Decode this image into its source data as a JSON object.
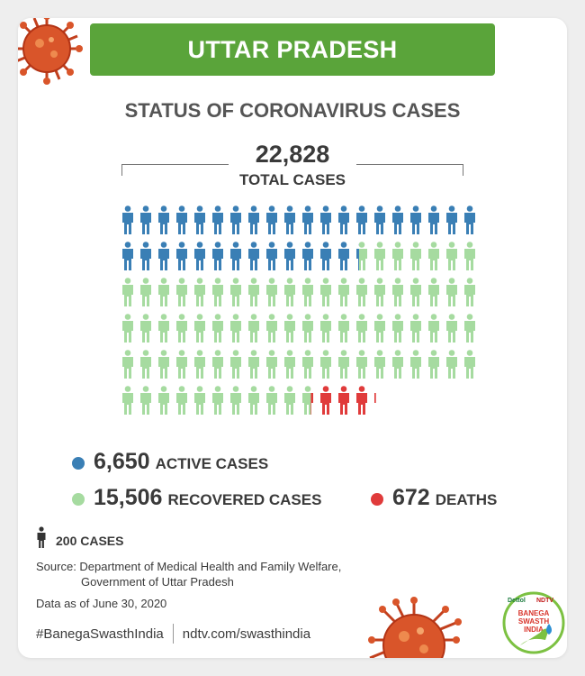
{
  "header": {
    "state": "UTTAR PRADESH",
    "title": "STATUS OF CORONAVIRUS CASES"
  },
  "total": {
    "value": "22,828",
    "label": "TOTAL CASES"
  },
  "legend": {
    "active": {
      "value": "6,650",
      "label": "ACTIVE CASES"
    },
    "recovered": {
      "value": "15,506",
      "label": "RECOVERED CASES"
    },
    "deaths": {
      "value": "672",
      "label": "DEATHS"
    }
  },
  "unit": {
    "label": "200 CASES"
  },
  "source": {
    "line1": "Source: Department of Medical Health and Family Welfare,",
    "line2": "Government of Uttar Pradesh"
  },
  "as_of": "Data as of June 30, 2020",
  "footer": {
    "hashtag": "#BanegaSwasthIndia",
    "url": "ndtv.com/swasthindia"
  },
  "logo": {
    "brand1": "Dettol",
    "brand2": "NDTV",
    "line1": "BANEGA",
    "line2": "SWASTH",
    "line3": "INDIA"
  },
  "colors": {
    "banner": "#5aa43a",
    "active": "#3a7fb5",
    "recovered": "#a6dba0",
    "deaths": "#e03b3b",
    "unit_icon": "#333333"
  },
  "chart_data": {
    "type": "waffle",
    "unit_cases": 200,
    "icons_per_row": 20,
    "categories": [
      "ACTIVE CASES",
      "RECOVERED CASES",
      "DEATHS"
    ],
    "values": [
      6650,
      15506,
      672
    ],
    "icon_counts": [
      33.25,
      77.53,
      3.36
    ],
    "total": 22828
  }
}
